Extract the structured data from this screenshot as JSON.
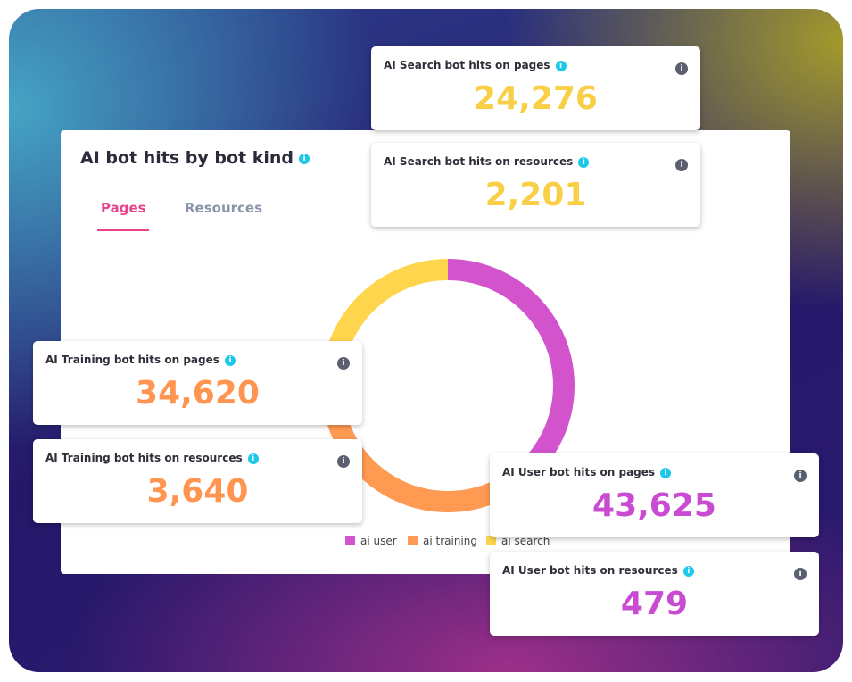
{
  "chart_data": {
    "type": "donut",
    "title": "AI bot hits by bot kind",
    "tabs": [
      "Pages",
      "Resources"
    ],
    "categories": [
      "ai user",
      "ai training",
      "ai search"
    ],
    "values": [
      43625,
      34620,
      24276
    ],
    "colors": [
      "#d253cc",
      "#ff9a52",
      "#ffd54d"
    ]
  },
  "cards": [
    {
      "title": "AI Search bot hits on pages",
      "value": "24,276",
      "color": "#f8cf47"
    },
    {
      "title": "AI Search bot hits on resources",
      "value": "2,201",
      "color": "#f8cf47"
    },
    {
      "title": "AI Training bot hits on pages",
      "value": "34,620",
      "color": "#ff9550"
    },
    {
      "title": "AI Training bot hits on resources",
      "value": "3,640",
      "color": "#ff9550"
    },
    {
      "title": "AI User bot hits on pages",
      "value": "43,625",
      "color": "#c94bd2"
    },
    {
      "title": "AI User bot hits on resources",
      "value": "479",
      "color": "#c94bd2"
    }
  ]
}
